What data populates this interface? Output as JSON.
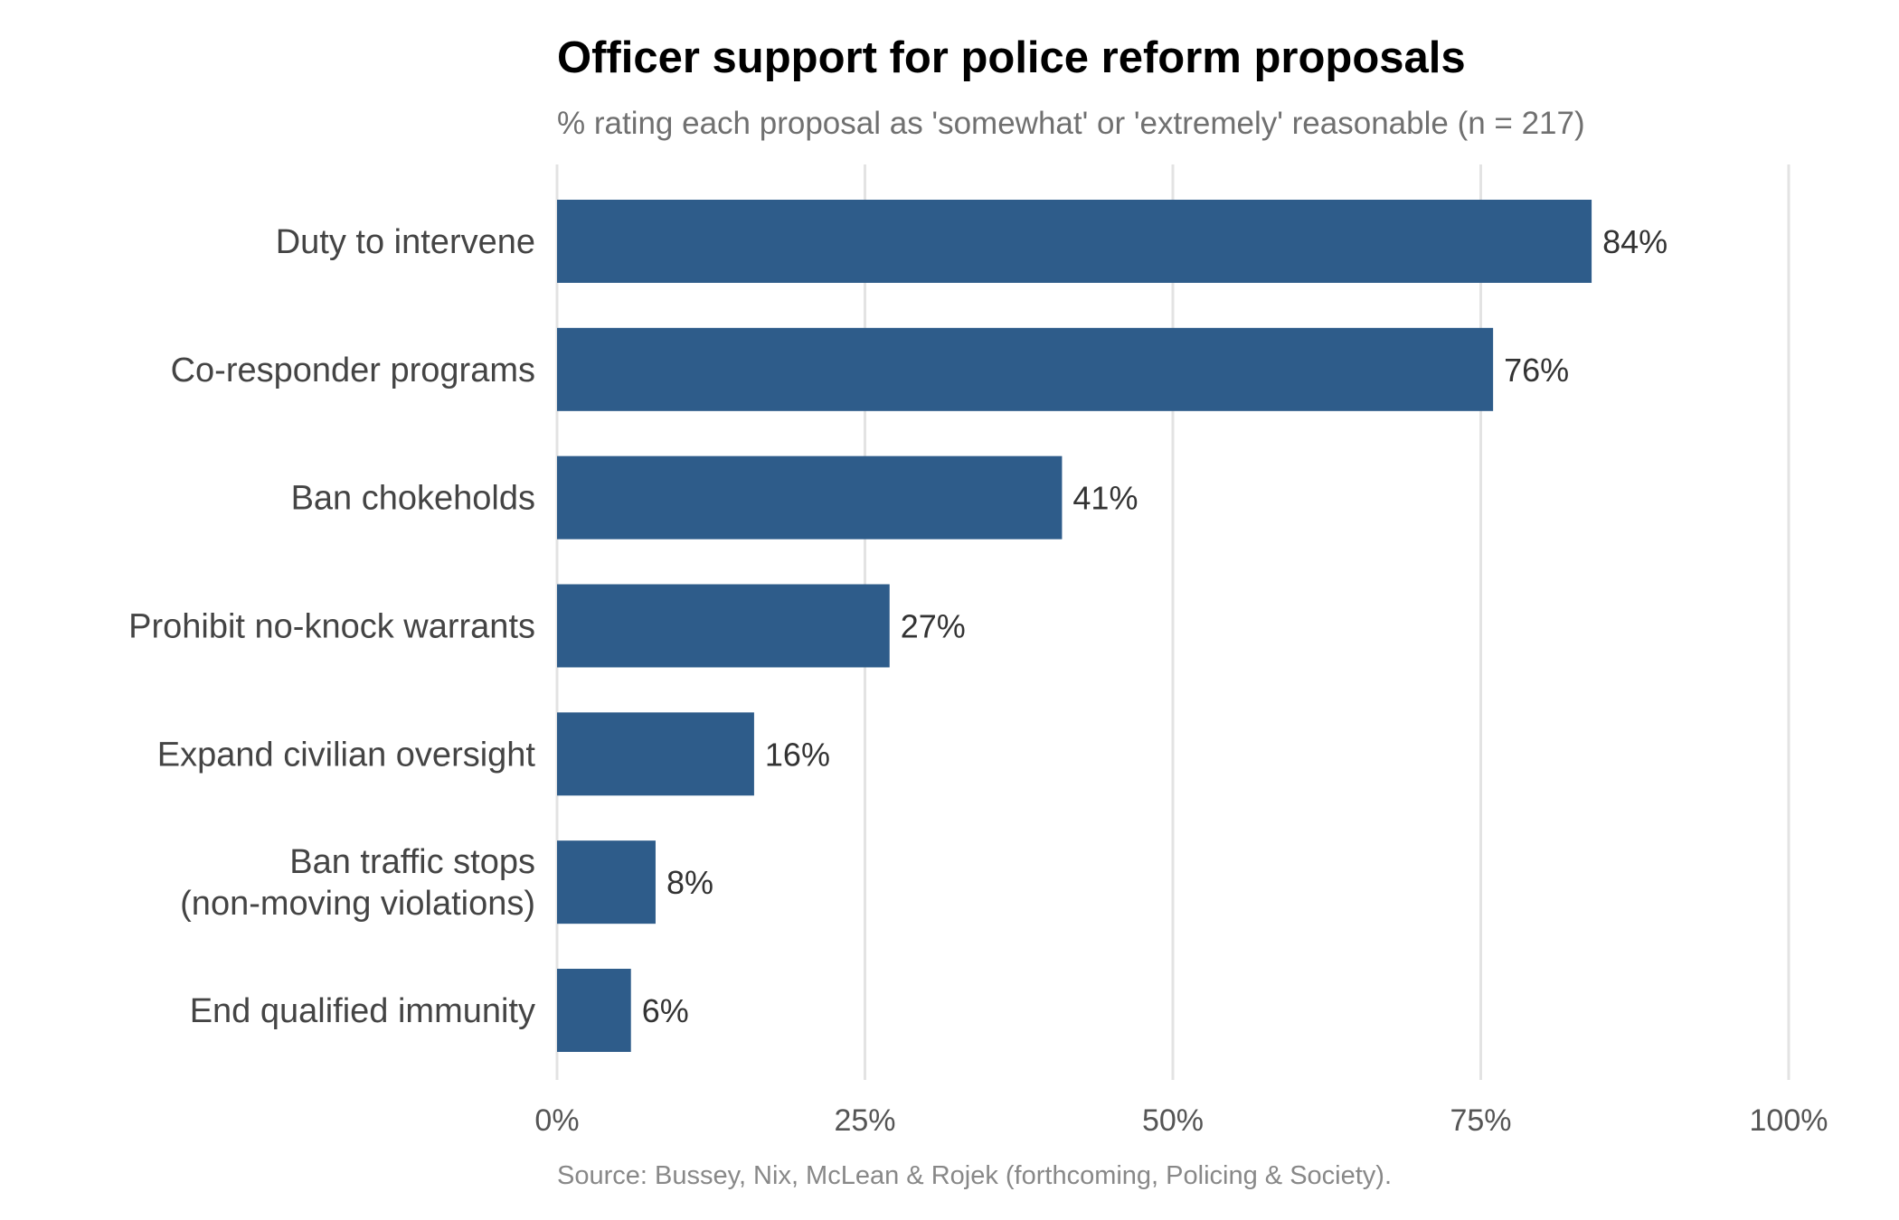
{
  "chart_data": {
    "type": "bar",
    "orientation": "horizontal",
    "title": "Officer support for police reform proposals",
    "subtitle": "% rating each proposal as 'somewhat' or 'extremely' reasonable (n = 217)",
    "caption": "Source: Bussey, Nix, McLean & Rojek (forthcoming, Policing & Society).",
    "categories": [
      [
        "Duty to intervene"
      ],
      [
        "Co-responder programs"
      ],
      [
        "Ban chokeholds"
      ],
      [
        "Prohibit no-knock warrants"
      ],
      [
        "Expand civilian oversight"
      ],
      [
        "Ban traffic stops",
        "(non-moving violations)"
      ],
      [
        "End qualified immunity"
      ]
    ],
    "values": [
      84,
      76,
      41,
      27,
      16,
      8,
      6
    ],
    "value_labels": [
      "84%",
      "76%",
      "41%",
      "27%",
      "16%",
      "8%",
      "6%"
    ],
    "xlim": [
      0,
      100
    ],
    "xticks": [
      0,
      25,
      50,
      75,
      100
    ],
    "xtick_labels": [
      "0%",
      "25%",
      "50%",
      "75%",
      "100%"
    ],
    "xlabel": "",
    "ylabel": "",
    "grid": "vertical major",
    "legend": "none",
    "bar_color": "#2e5c8a"
  }
}
